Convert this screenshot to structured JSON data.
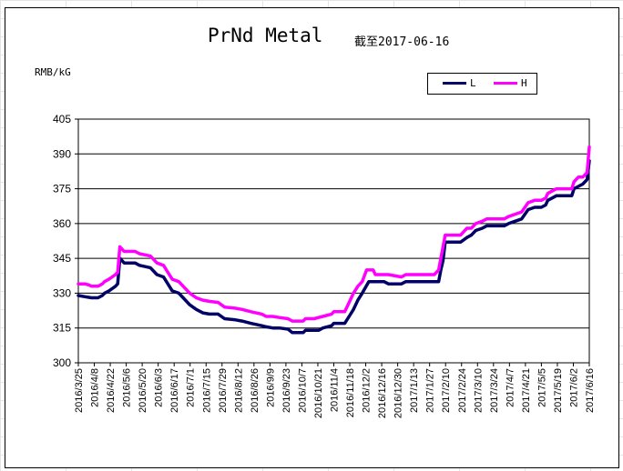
{
  "chart_data": {
    "type": "line",
    "title": "PrNd Metal",
    "subtitle": "截至2017-06-16",
    "ylabel": "RMB/kG",
    "ylim": [
      300,
      405
    ],
    "yticks": [
      "300",
      "315",
      "330",
      "345",
      "360",
      "375",
      "390",
      "405"
    ],
    "xticks": [
      "2016/3/25",
      "2016/4/8",
      "2016/4/22",
      "2016/5/6",
      "2016/5/20",
      "2016/6/3",
      "2016/6/17",
      "2016/7/1",
      "2016/7/15",
      "2016/7/29",
      "2016/8/12",
      "2016/8/26",
      "2016/9/9",
      "2016/9/23",
      "2016/10/7",
      "2016/10/21",
      "2016/11/4",
      "2016/11/18",
      "2016/12/2",
      "2016/12/16",
      "2016/12/30",
      "2017/1/13",
      "2017/1/27",
      "2017/2/10",
      "2017/2/24",
      "2017/3/10",
      "2017/3/24",
      "2017/4/7",
      "2017/4/21",
      "2017/5/5",
      "2017/5/19",
      "2017/6/2",
      "2017/6/16"
    ],
    "grid": true,
    "legend_position": "top-right",
    "series": [
      {
        "name": "L",
        "color": "#000066",
        "values": [
          [
            0,
            329
          ],
          [
            3,
            328.5
          ],
          [
            6,
            328
          ],
          [
            9,
            328
          ],
          [
            11,
            329
          ],
          [
            12,
            330
          ],
          [
            14,
            331
          ],
          [
            17,
            333
          ],
          [
            18,
            334
          ],
          [
            19,
            345
          ],
          [
            21,
            343
          ],
          [
            26,
            343
          ],
          [
            28,
            342
          ],
          [
            33,
            341
          ],
          [
            36,
            338
          ],
          [
            39,
            337
          ],
          [
            41,
            334
          ],
          [
            43,
            331
          ],
          [
            46,
            330
          ],
          [
            48,
            328
          ],
          [
            51,
            325
          ],
          [
            54,
            323
          ],
          [
            57,
            321.5
          ],
          [
            60,
            321
          ],
          [
            64,
            321
          ],
          [
            67,
            319
          ],
          [
            72,
            318.5
          ],
          [
            75,
            318
          ],
          [
            79,
            317
          ],
          [
            84,
            316
          ],
          [
            86,
            315.5
          ],
          [
            89,
            315
          ],
          [
            92,
            315
          ],
          [
            96,
            314.5
          ],
          [
            98,
            313
          ],
          [
            103,
            313
          ],
          [
            104,
            314
          ],
          [
            108,
            314
          ],
          [
            110,
            314
          ],
          [
            112,
            315
          ],
          [
            116,
            316
          ],
          [
            117,
            317
          ],
          [
            122,
            317
          ],
          [
            124,
            320
          ],
          [
            126,
            323
          ],
          [
            128,
            327
          ],
          [
            130,
            330
          ],
          [
            133,
            335
          ],
          [
            136,
            335
          ],
          [
            140,
            335
          ],
          [
            142,
            334
          ],
          [
            148,
            334
          ],
          [
            150,
            335
          ],
          [
            157,
            335
          ],
          [
            163,
            335
          ],
          [
            165,
            335
          ],
          [
            166,
            340
          ],
          [
            167,
            344
          ],
          [
            168,
            352
          ],
          [
            172,
            352
          ],
          [
            175,
            352
          ],
          [
            178,
            354
          ],
          [
            180,
            355
          ],
          [
            182,
            357
          ],
          [
            185,
            358
          ],
          [
            187,
            359
          ],
          [
            195,
            359
          ],
          [
            197,
            360
          ],
          [
            200,
            361
          ],
          [
            203,
            362
          ],
          [
            206,
            366
          ],
          [
            209,
            367
          ],
          [
            212,
            367
          ],
          [
            214,
            368
          ],
          [
            215,
            370
          ],
          [
            217,
            371
          ],
          [
            219,
            372
          ],
          [
            226,
            372
          ],
          [
            227,
            375
          ],
          [
            229,
            376
          ],
          [
            231,
            377
          ],
          [
            233,
            379
          ],
          [
            234,
            387
          ]
        ]
      },
      {
        "name": "H",
        "color": "#ff00ff",
        "values": [
          [
            0,
            334
          ],
          [
            3,
            334
          ],
          [
            5,
            333.5
          ],
          [
            6,
            333
          ],
          [
            9,
            333
          ],
          [
            11,
            334
          ],
          [
            12,
            335
          ],
          [
            14,
            336
          ],
          [
            17,
            338
          ],
          [
            18,
            339
          ],
          [
            19,
            350
          ],
          [
            21,
            348
          ],
          [
            26,
            348
          ],
          [
            28,
            347
          ],
          [
            33,
            346
          ],
          [
            36,
            343
          ],
          [
            39,
            342
          ],
          [
            41,
            339
          ],
          [
            43,
            336
          ],
          [
            46,
            335
          ],
          [
            48,
            333
          ],
          [
            51,
            330
          ],
          [
            54,
            328
          ],
          [
            57,
            327
          ],
          [
            60,
            326.5
          ],
          [
            64,
            326
          ],
          [
            67,
            324
          ],
          [
            72,
            323.5
          ],
          [
            75,
            323
          ],
          [
            79,
            322
          ],
          [
            84,
            321
          ],
          [
            86,
            320
          ],
          [
            89,
            320
          ],
          [
            92,
            319.5
          ],
          [
            96,
            319
          ],
          [
            98,
            318
          ],
          [
            103,
            318
          ],
          [
            104,
            319
          ],
          [
            108,
            319
          ],
          [
            110,
            319.5
          ],
          [
            112,
            320
          ],
          [
            116,
            321
          ],
          [
            117,
            322
          ],
          [
            122,
            322
          ],
          [
            124,
            326
          ],
          [
            126,
            330
          ],
          [
            128,
            333
          ],
          [
            130,
            335
          ],
          [
            132,
            340
          ],
          [
            135,
            340
          ],
          [
            136,
            338
          ],
          [
            140,
            338
          ],
          [
            142,
            338
          ],
          [
            148,
            337
          ],
          [
            150,
            338
          ],
          [
            157,
            338
          ],
          [
            163,
            338
          ],
          [
            165,
            340
          ],
          [
            166,
            345
          ],
          [
            167,
            350
          ],
          [
            168,
            355
          ],
          [
            172,
            355
          ],
          [
            175,
            355
          ],
          [
            178,
            358
          ],
          [
            180,
            358
          ],
          [
            182,
            360
          ],
          [
            185,
            361
          ],
          [
            187,
            362
          ],
          [
            195,
            362
          ],
          [
            197,
            363
          ],
          [
            200,
            364
          ],
          [
            203,
            365
          ],
          [
            206,
            369
          ],
          [
            209,
            370
          ],
          [
            212,
            370
          ],
          [
            214,
            371
          ],
          [
            215,
            373
          ],
          [
            217,
            374
          ],
          [
            219,
            375
          ],
          [
            226,
            375
          ],
          [
            227,
            378
          ],
          [
            229,
            380
          ],
          [
            231,
            380
          ],
          [
            233,
            382
          ],
          [
            234,
            393
          ]
        ]
      }
    ]
  }
}
